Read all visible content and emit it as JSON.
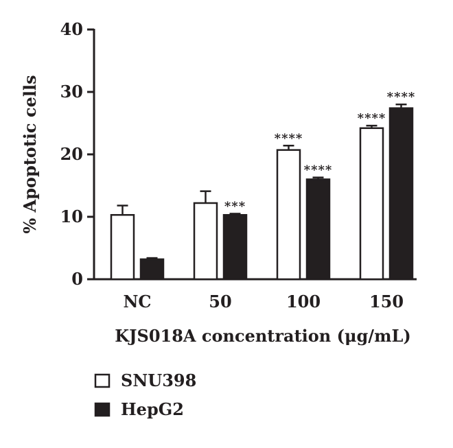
{
  "chart_data": {
    "type": "bar",
    "xlabel": "KJS018A concentration (μg/mL)",
    "ylabel": "% Apoptotic cells",
    "ylim": [
      0,
      40
    ],
    "yticks": [
      0,
      10,
      20,
      30,
      40
    ],
    "categories": [
      "NC",
      "50",
      "100",
      "150"
    ],
    "series": [
      {
        "name": "SNU398",
        "fill": "#ffffff",
        "values": [
          10.3,
          12.2,
          20.7,
          24.2
        ],
        "errors": [
          1.5,
          1.9,
          0.7,
          0.4
        ],
        "significance": [
          "",
          "",
          "****",
          "****"
        ]
      },
      {
        "name": "HepG2",
        "fill": "#231f20",
        "values": [
          3.2,
          10.3,
          16.0,
          27.4
        ],
        "errors": [
          0.2,
          0.2,
          0.3,
          0.6
        ],
        "significance": [
          "",
          "***",
          "****",
          "****"
        ]
      }
    ],
    "legend_position": "bottom-left",
    "grid": false,
    "colors": {
      "ink": "#231f20",
      "background": "#ffffff"
    }
  }
}
